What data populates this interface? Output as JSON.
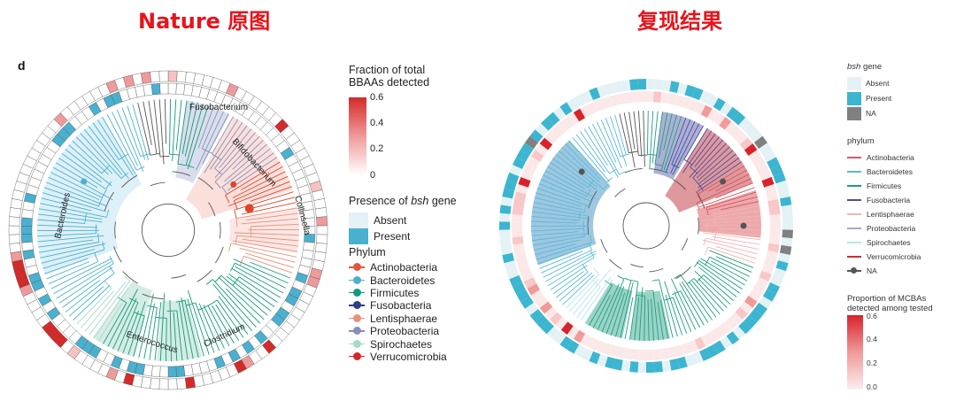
{
  "titles": {
    "left": "Nature 原图",
    "right": "复现结果"
  },
  "panel_label": "d",
  "left_figure": {
    "clade_labels": {
      "fusobacterium": "Fusobacterium",
      "bifidobacterium": "Bifidobacterium",
      "collinsella": "Collinsella",
      "bacteroides": "Bacteroides",
      "enterococcus": "Enterococcus",
      "clostridium": "Clostridium"
    },
    "fraction_legend": {
      "title_line1": "Fraction of total",
      "title_line2": "BBAAs detected",
      "ticks": [
        "0.6",
        "0.4",
        "0.2",
        "0"
      ]
    },
    "bsh_legend": {
      "title_prefix": "Presence of ",
      "title_gene": "bsh",
      "title_suffix": " gene",
      "absent": "Absent",
      "present": "Present"
    },
    "phylum_legend": {
      "title": "Phylum",
      "items": [
        {
          "label": "Actinobacteria",
          "color": "#e3553a"
        },
        {
          "label": "Bacteroidetes",
          "color": "#4ab0cf"
        },
        {
          "label": "Firmicutes",
          "color": "#139a7a"
        },
        {
          "label": "Fusobacteria",
          "color": "#2f3c86"
        },
        {
          "label": "Lentisphaerae",
          "color": "#eb907a"
        },
        {
          "label": "Proteobacteria",
          "color": "#8791b7"
        },
        {
          "label": "Spirochaetes",
          "color": "#a7d8c9"
        },
        {
          "label": "Verrucomicrobia",
          "color": "#d6262b"
        }
      ]
    }
  },
  "right_figure": {
    "bsh_legend": {
      "title_gene": "bsh",
      "title_suffix": " gene",
      "items": [
        {
          "label": "Absent",
          "color": "#e4f2f6"
        },
        {
          "label": "Present",
          "color": "#3cb5d0"
        },
        {
          "label": "NA",
          "color": "#808080"
        }
      ]
    },
    "phylum_legend": {
      "title": "phylum",
      "items": [
        {
          "label": "Actinobacteria",
          "color": "#e05a5a"
        },
        {
          "label": "Bacteroidetes",
          "color": "#5bb9d6"
        },
        {
          "label": "Firmicutes",
          "color": "#1f9e80"
        },
        {
          "label": "Fusobacteria",
          "color": "#4b4f9c"
        },
        {
          "label": "Lentisphaerae",
          "color": "#f2b4b4"
        },
        {
          "label": "Proteobacteria",
          "color": "#a9a4d4"
        },
        {
          "label": "Spirochaetes",
          "color": "#b9e3ee"
        },
        {
          "label": "Verrucomicrobia",
          "color": "#d42a2a"
        }
      ],
      "na_label": "NA"
    },
    "proportion_legend": {
      "title_line1": "Proportion of MCBAs",
      "title_line2": "detected among tested",
      "ticks": [
        "0.6",
        "0.4",
        "0.2",
        "0.0"
      ]
    }
  }
}
